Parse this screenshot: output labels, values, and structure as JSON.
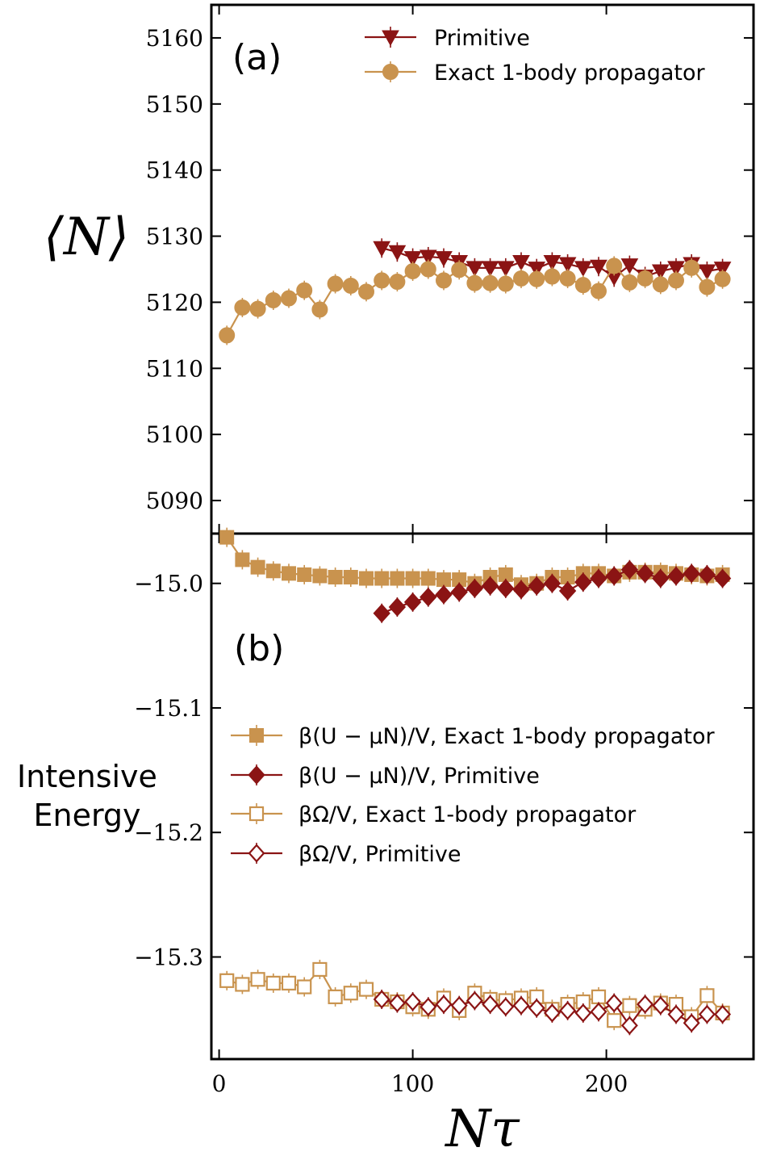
{
  "colors": {
    "gold": "#C9934E",
    "dark_red": "#8B1414",
    "axis": "#000000"
  },
  "chart_data": [
    {
      "type": "line",
      "panel_label": "(a)",
      "ylabel": "⟨N⟩",
      "xlabel": "Nτ",
      "xlim": [
        -4,
        276
      ],
      "ylim": [
        5085,
        5165
      ],
      "xticks": [
        0,
        100,
        200
      ],
      "xtick_labels": [
        "0",
        "100",
        "200"
      ],
      "yticks": [
        5090,
        5100,
        5110,
        5120,
        5130,
        5140,
        5150,
        5160
      ],
      "ytick_labels": [
        "5090",
        "5100",
        "5110",
        "5120",
        "5130",
        "5140",
        "5150",
        "5160"
      ],
      "legend": [
        "Primitive",
        "Exact 1-body propagator"
      ],
      "legend_position": "top-right",
      "series": [
        {
          "name": "Primitive",
          "marker": "filled-triangle-down",
          "color": "#8B1414",
          "x": [
            84,
            92,
            100,
            108,
            116,
            124,
            132,
            140,
            148,
            156,
            164,
            172,
            180,
            188,
            196,
            204,
            212,
            220,
            228,
            236,
            244,
            252,
            260
          ],
          "y": [
            5128.2,
            5127.6,
            5126.7,
            5126.9,
            5126.7,
            5126.1,
            5125.2,
            5125.2,
            5125.2,
            5126.1,
            5125.1,
            5126.1,
            5125.8,
            5125.2,
            5125.4,
            5123.8,
            5125.6,
            5123.9,
            5124.7,
            5125.2,
            5125.8,
            5124.7,
            5125.1
          ]
        },
        {
          "name": "Exact 1-body propagator",
          "marker": "filled-circle",
          "color": "#C9934E",
          "x": [
            4,
            12,
            20,
            28,
            36,
            44,
            52,
            60,
            68,
            76,
            84,
            92,
            100,
            108,
            116,
            124,
            132,
            140,
            148,
            156,
            164,
            172,
            180,
            188,
            196,
            204,
            212,
            220,
            228,
            236,
            244,
            252,
            260
          ],
          "y": [
            5115.0,
            5119.2,
            5119.0,
            5120.3,
            5120.6,
            5121.8,
            5118.9,
            5122.8,
            5122.5,
            5121.6,
            5123.3,
            5123.1,
            5124.7,
            5125.0,
            5123.3,
            5124.9,
            5122.9,
            5122.9,
            5122.8,
            5123.6,
            5123.5,
            5123.9,
            5123.6,
            5122.6,
            5121.7,
            5125.5,
            5123.0,
            5123.6,
            5122.7,
            5123.3,
            5125.2,
            5122.3,
            5123.5
          ]
        }
      ]
    },
    {
      "type": "line",
      "panel_label": "(b)",
      "ylabel": "Intensive Energy",
      "xlabel": "Nτ",
      "xlim": [
        -4,
        276
      ],
      "ylim": [
        -15.382,
        -14.96
      ],
      "xticks": [
        0,
        100,
        200
      ],
      "xtick_labels": [
        "0",
        "100",
        "200"
      ],
      "yticks": [
        -15.0,
        -15.1,
        -15.2,
        -15.3
      ],
      "ytick_labels": [
        "−15.0",
        "−15.1",
        "−15.2",
        "−15.3"
      ],
      "legend_position": "center-left",
      "series": [
        {
          "name": "β(U − μN)/V, Exact 1-body propagator",
          "marker": "filled-square",
          "color": "#C9934E",
          "x": [
            4,
            12,
            20,
            28,
            36,
            44,
            52,
            60,
            68,
            76,
            84,
            92,
            100,
            108,
            116,
            124,
            132,
            140,
            148,
            156,
            164,
            172,
            180,
            188,
            196,
            204,
            212,
            220,
            228,
            236,
            244,
            252,
            260
          ],
          "y": [
            -14.963,
            -14.981,
            -14.987,
            -14.99,
            -14.992,
            -14.993,
            -14.994,
            -14.995,
            -14.995,
            -14.996,
            -14.996,
            -14.996,
            -14.996,
            -14.996,
            -14.997,
            -14.997,
            -15.0,
            -14.995,
            -14.993,
            -15.001,
            -15.0,
            -14.995,
            -14.995,
            -14.992,
            -14.992,
            -14.994,
            -14.991,
            -14.991,
            -14.991,
            -14.992,
            -14.993,
            -14.994,
            -14.993
          ]
        },
        {
          "name": "β(U − μN)/V, Primitive",
          "marker": "filled-diamond",
          "color": "#8B1414",
          "x": [
            84,
            92,
            100,
            108,
            116,
            124,
            132,
            140,
            148,
            156,
            164,
            172,
            180,
            188,
            196,
            204,
            212,
            220,
            228,
            236,
            244,
            252,
            260
          ],
          "y": [
            -15.024,
            -15.019,
            -15.015,
            -15.011,
            -15.009,
            -15.007,
            -15.004,
            -15.002,
            -15.004,
            -15.005,
            -15.002,
            -15.0,
            -15.006,
            -14.999,
            -14.996,
            -14.994,
            -14.989,
            -14.992,
            -14.996,
            -14.994,
            -14.992,
            -14.993,
            -14.996
          ]
        },
        {
          "name": "βΩ/V, Exact 1-body propagator",
          "marker": "open-square",
          "color": "#C9934E",
          "x": [
            4,
            12,
            20,
            28,
            36,
            44,
            52,
            60,
            68,
            76,
            84,
            92,
            100,
            108,
            116,
            124,
            132,
            140,
            148,
            156,
            164,
            172,
            180,
            188,
            196,
            204,
            212,
            220,
            228,
            236,
            244,
            252,
            260
          ],
          "y": [
            -15.319,
            -15.322,
            -15.318,
            -15.321,
            -15.321,
            -15.324,
            -15.31,
            -15.332,
            -15.329,
            -15.326,
            -15.334,
            -15.336,
            -15.34,
            -15.342,
            -15.333,
            -15.343,
            -15.329,
            -15.334,
            -15.335,
            -15.333,
            -15.332,
            -15.342,
            -15.338,
            -15.336,
            -15.332,
            -15.351,
            -15.339,
            -15.342,
            -15.337,
            -15.338,
            -15.348,
            -15.331,
            -15.345
          ]
        },
        {
          "name": "βΩ/V, Primitive",
          "marker": "open-diamond",
          "color": "#8B1414",
          "x": [
            84,
            92,
            100,
            108,
            116,
            124,
            132,
            140,
            148,
            156,
            164,
            172,
            180,
            188,
            196,
            204,
            212,
            220,
            228,
            236,
            244,
            252,
            260
          ],
          "y": [
            -15.334,
            -15.337,
            -15.336,
            -15.34,
            -15.338,
            -15.339,
            -15.335,
            -15.338,
            -15.34,
            -15.339,
            -15.341,
            -15.345,
            -15.343,
            -15.345,
            -15.344,
            -15.337,
            -15.355,
            -15.338,
            -15.339,
            -15.346,
            -15.353,
            -15.346,
            -15.346
          ]
        }
      ]
    }
  ]
}
